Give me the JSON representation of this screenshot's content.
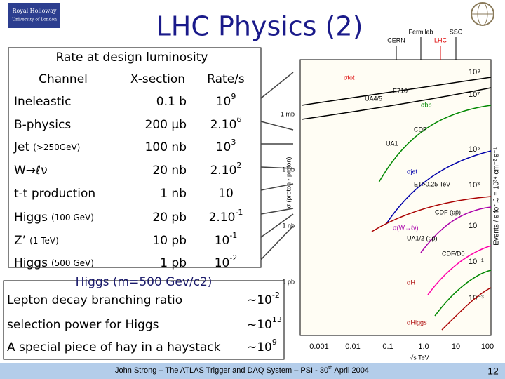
{
  "header": {
    "title": "LHC Physics (2)",
    "logo_text": [
      "Royal Holloway",
      "University of London"
    ]
  },
  "table": {
    "caption": "Rate at design luminosity",
    "columns": [
      "Channel",
      "X-section",
      "Rate/s"
    ],
    "rows": [
      {
        "channel": {
          "name": "Ineleastic"
        },
        "xsection": "0.1 b",
        "rate": {
          "base": "10",
          "exp": "9"
        }
      },
      {
        "channel": {
          "name": "B-physics"
        },
        "xsection": "200 μb",
        "rate": {
          "base": "2.10",
          "exp": "6"
        }
      },
      {
        "channel": {
          "name": "Jet",
          "note": "(>250GeV)"
        },
        "xsection": "100 nb",
        "rate": {
          "base": "10",
          "exp": "3"
        }
      },
      {
        "channel": {
          "name": "W→ℓν"
        },
        "xsection": "20 nb",
        "rate": {
          "base": "2.10",
          "exp": "2"
        }
      },
      {
        "channel": {
          "name": "t-t production"
        },
        "xsection": "1 nb",
        "rate": {
          "base": "10"
        }
      },
      {
        "channel": {
          "name": "Higgs",
          "note": "(100 GeV)"
        },
        "xsection": "20 pb",
        "rate": {
          "base": "2.10",
          "exp": "-1"
        }
      },
      {
        "channel": {
          "name": "Z’",
          "note": "(1 TeV)"
        },
        "xsection": "10 pb",
        "rate": {
          "base": "10",
          "exp": "-1"
        }
      },
      {
        "channel": {
          "name": "Higgs",
          "note": "(500 GeV)"
        },
        "xsection": "1 pb",
        "rate": {
          "base": "10",
          "exp": "-2"
        }
      }
    ]
  },
  "higgs_box": {
    "subtitle": "Higgs (m=500 Gev/c2)",
    "rows": [
      {
        "label": "Lepton decay branching ratio",
        "value": {
          "base": "~10",
          "exp": "-2"
        }
      },
      {
        "label": "selection power for Higgs",
        "value": {
          "base": "~10",
          "exp": "13"
        }
      },
      {
        "label": "A special piece of hay in a haystack",
        "value": {
          "base": "~10",
          "exp": "9"
        }
      }
    ]
  },
  "plot": {
    "accelerators": [
      "Fermilab",
      "SSC",
      "CERN",
      "LHC"
    ],
    "y_axis_label": "σ (proton - proton)",
    "y2_axis_label": "Events / s for ℒ = 10³⁴ cm⁻² s⁻¹",
    "left_ticks": [
      "1 mb",
      "1 μb",
      "1 nb",
      "1 pb"
    ],
    "right_ticks": [
      "10⁹",
      "10⁷",
      "10⁵",
      "10³",
      "10",
      "10⁻¹",
      "10⁻³"
    ],
    "x_ticks": [
      "0.001",
      "0.01",
      "0.1",
      "1.0",
      "10",
      "100"
    ],
    "x_label": "√s  TeV",
    "curve_labels": [
      "σtot",
      "E710",
      "UA4/5",
      "σbb̄",
      "CDF",
      "UA1",
      "σjet",
      "ET>0.25 TeV",
      "CDF (pp̄)",
      "σ(W→ℓν)",
      "UA1/2 (pp̄)",
      "CDF/D0",
      "σH",
      "σHiggs"
    ]
  },
  "footer": {
    "text": "John Strong – The ATLAS Trigger and DAQ System – PSI - 30",
    "text_sup": "th",
    "text_end": " April 2004",
    "page": "12"
  }
}
